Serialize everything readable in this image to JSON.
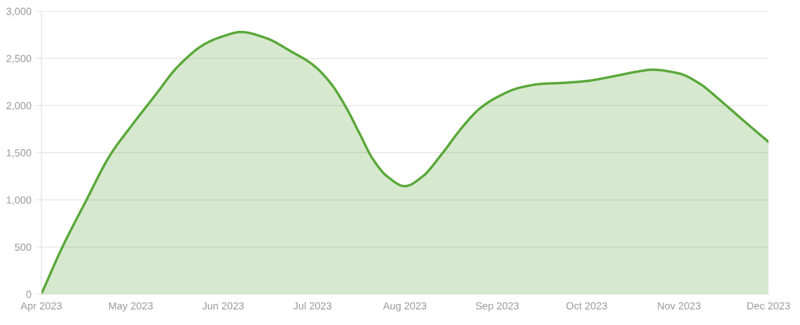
{
  "chart_data": {
    "type": "area",
    "x": [
      "2023-04-01",
      "2023-04-08",
      "2023-04-16",
      "2023-04-24",
      "2023-05-01",
      "2023-05-09",
      "2023-05-17",
      "2023-05-26",
      "2023-06-01",
      "2023-06-07",
      "2023-06-15",
      "2023-06-24",
      "2023-07-01",
      "2023-07-07",
      "2023-07-12",
      "2023-07-17",
      "2023-07-21",
      "2023-07-26",
      "2023-08-01",
      "2023-08-07",
      "2023-08-13",
      "2023-08-20",
      "2023-08-26",
      "2023-09-01",
      "2023-09-08",
      "2023-09-16",
      "2023-09-23",
      "2023-10-01",
      "2023-10-10",
      "2023-10-19",
      "2023-10-23",
      "2023-11-01",
      "2023-11-08",
      "2023-11-15",
      "2023-11-23",
      "2023-12-01"
    ],
    "series": [
      {
        "color": "#5aa83a",
        "values": [
          0,
          495,
          990,
          1470,
          1775,
          2100,
          2420,
          2655,
          2735,
          2780,
          2720,
          2570,
          2435,
          2240,
          1995,
          1690,
          1445,
          1250,
          1145,
          1250,
          1470,
          1760,
          1965,
          2090,
          2185,
          2230,
          2240,
          2260,
          2310,
          2365,
          2380,
          2340,
          2230,
          2050,
          1830,
          1615
        ]
      }
    ],
    "xlim": [
      "2023-04-01",
      "2023-12-01"
    ],
    "xticks": [
      {
        "value": "2023-04-01",
        "label": "Apr 2023"
      },
      {
        "value": "2023-05-01",
        "label": "May 2023"
      },
      {
        "value": "2023-06-01",
        "label": "Jun 2023"
      },
      {
        "value": "2023-07-01",
        "label": "Jul 2023"
      },
      {
        "value": "2023-08-01",
        "label": "Aug 2023"
      },
      {
        "value": "2023-09-01",
        "label": "Sep 2023"
      },
      {
        "value": "2023-10-01",
        "label": "Oct 2023"
      },
      {
        "value": "2023-11-01",
        "label": "Nov 2023"
      },
      {
        "value": "2023-12-01",
        "label": "Dec 2023"
      }
    ],
    "ylim": [
      0,
      3000
    ],
    "yticks": [
      0,
      {
        "value": 500,
        "label": "500"
      },
      {
        "value": 1000,
        "label": "1,000"
      },
      {
        "value": 1500,
        "label": "1,500"
      },
      {
        "value": 2000,
        "label": "2,000"
      },
      {
        "value": 2500,
        "label": "2,500"
      },
      {
        "value": 3000,
        "label": "3,000"
      }
    ],
    "grid": "y",
    "marker": "none",
    "line_style": "solid"
  }
}
